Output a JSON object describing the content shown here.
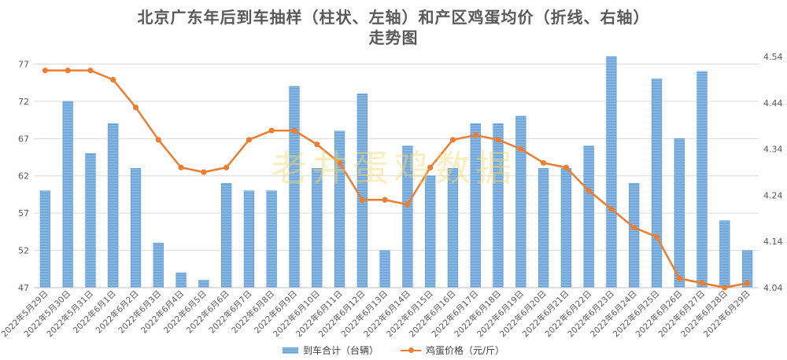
{
  "title_line1": "北京广东年后到车抽样（柱状、左轴）和产区鸡蛋均价（折线、右轴）",
  "title_line2": "走势图",
  "watermark": "老井蛋鸡数据",
  "colors": {
    "bar": "#5b9bd5",
    "bar_light": "#9dc3e6",
    "line": "#ed7d31",
    "grid": "#d9d9d9",
    "axis_text": "#595959"
  },
  "chart_data": {
    "type": "bar+line",
    "grid": true,
    "legend_position": "bottom",
    "categories": [
      "2022年5月29日",
      "2022年5月30日",
      "2022年5月31日",
      "2022年6月1日",
      "2022年6月2日",
      "2022年6月3日",
      "2022年6月4日",
      "2022年6月5日",
      "2022年6月6日",
      "2022年6月7日",
      "2022年6月8日",
      "2022年6月9日",
      "2022年6月10日",
      "2022年6月11日",
      "2022年6月12日",
      "2022年6月13日",
      "2022年6月14日",
      "2022年6月15日",
      "2022年6月16日",
      "2022年6月17日",
      "2022年6月18日",
      "2022年6月19日",
      "2022年6月20日",
      "2022年6月21日",
      "2022年6月22日",
      "2022年6月23日",
      "2022年6月24日",
      "2022年6月25日",
      "2022年6月26日",
      "2022年6月27日",
      "2022年6月28日",
      "2022年6月29日"
    ],
    "series": [
      {
        "name": "到车合计（台辆）",
        "type": "bar",
        "axis": "left",
        "values": [
          60,
          72,
          65,
          69,
          63,
          53,
          49,
          48,
          61,
          60,
          60,
          74,
          63,
          68,
          73,
          52,
          66,
          62,
          63,
          69,
          69,
          70,
          63,
          63,
          66,
          78,
          61,
          75,
          67,
          76,
          56,
          52
        ]
      },
      {
        "name": "鸡蛋价格（元/斤）",
        "type": "line",
        "axis": "right",
        "values": [
          4.51,
          4.51,
          4.51,
          4.49,
          4.43,
          4.36,
          4.3,
          4.29,
          4.3,
          4.36,
          4.38,
          4.38,
          4.35,
          4.31,
          4.23,
          4.23,
          4.22,
          4.3,
          4.36,
          4.37,
          4.36,
          4.34,
          4.31,
          4.3,
          4.25,
          4.21,
          4.17,
          4.15,
          4.06,
          4.05,
          4.04,
          4.05
        ]
      }
    ],
    "y_left": {
      "min": 47,
      "max": 78,
      "ticks": [
        47,
        52,
        57,
        62,
        67,
        72,
        77
      ]
    },
    "y_right": {
      "min": 4.04,
      "max": 4.54,
      "ticks": [
        "4.04",
        "4.14",
        "4.24",
        "4.34",
        "4.44",
        "4.54"
      ]
    }
  }
}
